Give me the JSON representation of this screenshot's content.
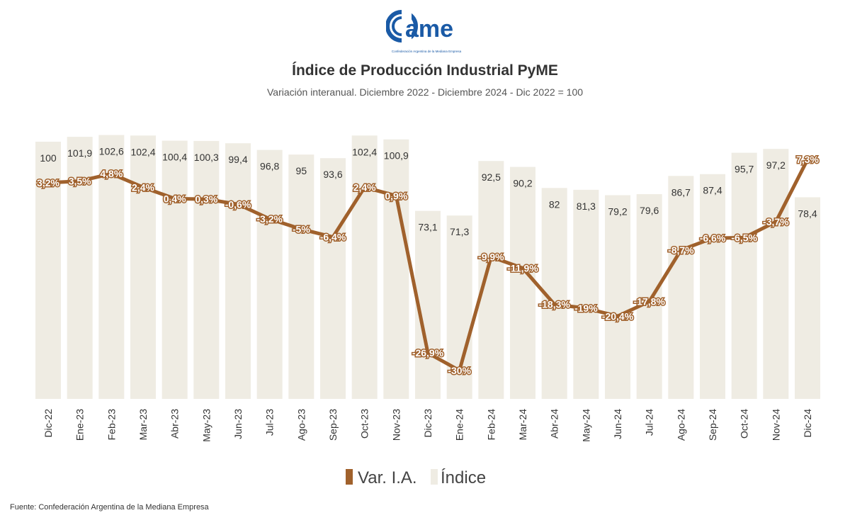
{
  "logo": {
    "text": "came",
    "tagline": "Confederación Argentina de la Mediana Empresa"
  },
  "chart_data": {
    "type": "bar+line",
    "title": "Índice de Producción Industrial PyME",
    "subtitle": "Variación interanual. Diciembre 2022 - Diciembre 2024 - Dic 2022 = 100",
    "categories": [
      "Dic-22",
      "Ene-23",
      "Feb-23",
      "Mar-23",
      "Abr-23",
      "May-23",
      "Jun-23",
      "Jul-23",
      "Ago-23",
      "Sep-23",
      "Oct-23",
      "Nov-23",
      "Dic-23",
      "Ene-24",
      "Feb-24",
      "Mar-24",
      "Abr-24",
      "May-24",
      "Jun-24",
      "Jul-24",
      "Ago-24",
      "Sep-24",
      "Oct-24",
      "Nov-24",
      "Dic-24"
    ],
    "series": [
      {
        "name": "Índice",
        "type": "bar",
        "color": "#efece3",
        "values": [
          100,
          101.9,
          102.6,
          102.4,
          100.4,
          100.3,
          99.4,
          96.8,
          95,
          93.6,
          102.4,
          100.9,
          73.1,
          71.3,
          92.5,
          90.2,
          82,
          81.3,
          79.2,
          79.6,
          86.7,
          87.4,
          95.7,
          97.2,
          78.4
        ],
        "labels": [
          "100",
          "101,9",
          "102,6",
          "102,4",
          "100,4",
          "100,3",
          "99,4",
          "96,8",
          "95",
          "93,6",
          "102,4",
          "100,9",
          "73,1",
          "71,3",
          "92,5",
          "90,2",
          "82",
          "81,3",
          "79,2",
          "79,6",
          "86,7",
          "87,4",
          "95,7",
          "97,2",
          "78,4"
        ]
      },
      {
        "name": "Var. I.A.",
        "type": "line",
        "color": "#a0612c",
        "values": [
          3.2,
          3.5,
          4.8,
          2.4,
          0.4,
          0.3,
          -0.6,
          -3.2,
          -5,
          -6.4,
          2.4,
          0.9,
          -26.9,
          -30,
          -9.9,
          -11.9,
          -18.3,
          -19,
          -20.4,
          -17.8,
          -8.7,
          -6.6,
          -6.5,
          -3.7,
          7.3
        ],
        "labels": [
          "3,2%",
          "3,5%",
          "4,8%",
          "2,4%",
          "0,4%",
          "0,3%",
          "-0,6%",
          "-3,2%",
          "-5%",
          "-6,4%",
          "2,4%",
          "0,9%",
          "-26,9%",
          "-30%",
          "-9,9%",
          "-11,9%",
          "-18,3%",
          "-19%",
          "-20,4%",
          "-17,8%",
          "-8,7%",
          "-6,6%",
          "-6,5%",
          "-3,7%",
          "7,3%"
        ]
      }
    ],
    "legend": {
      "position": "bottom",
      "items": [
        "Var. I.A.",
        "Índice"
      ]
    },
    "grid": false
  },
  "source": "Fuente: Confederación Argentina de la Mediana Empresa"
}
